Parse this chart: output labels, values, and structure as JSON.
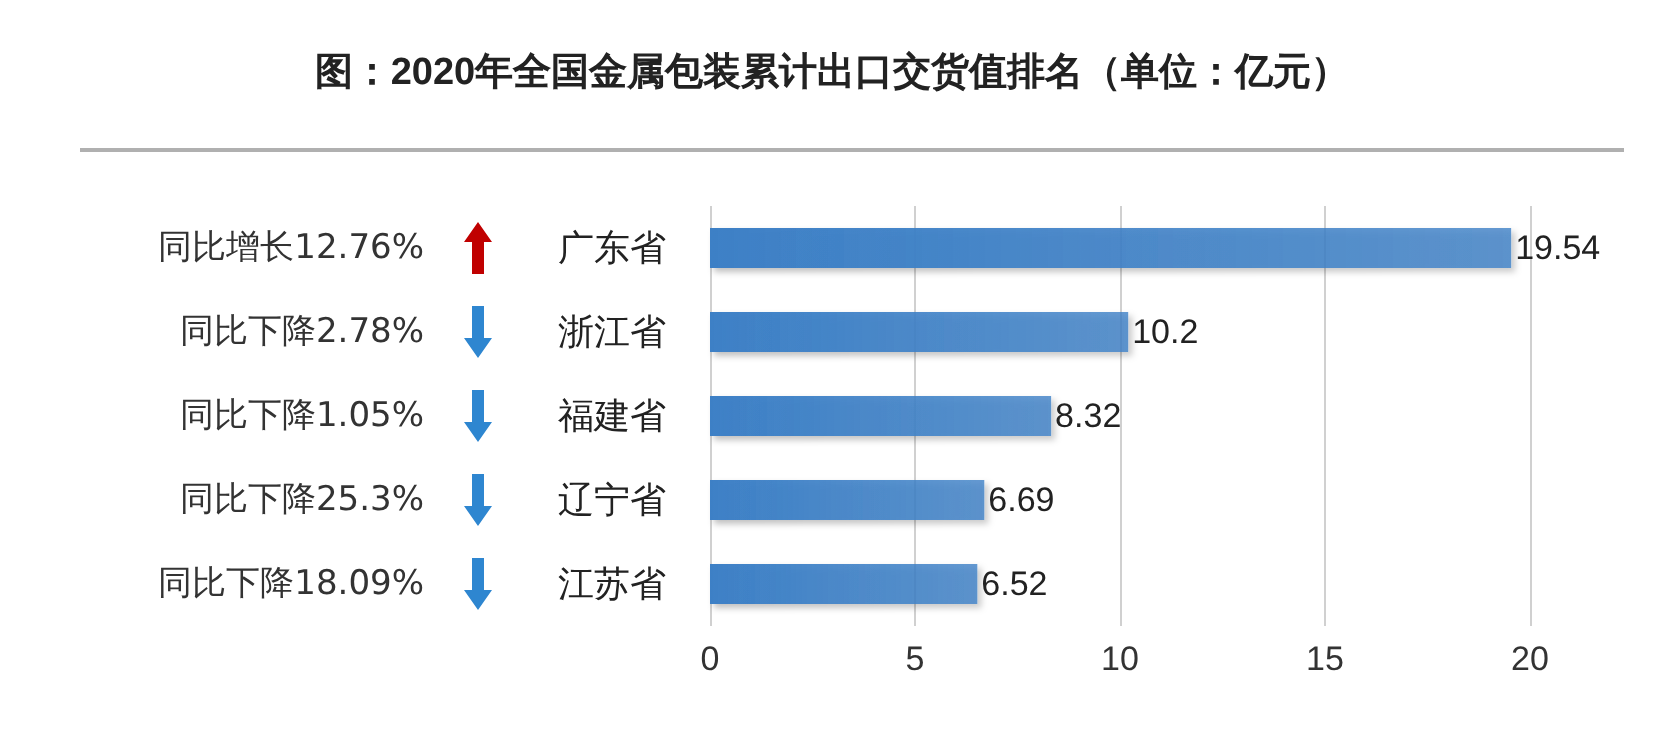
{
  "chart_data": {
    "type": "bar",
    "orientation": "horizontal",
    "title": "图：2020年全国金属包装累计出口交货值排名（单位：亿元）",
    "categories": [
      "广东省",
      "浙江省",
      "福建省",
      "辽宁省",
      "江苏省"
    ],
    "values": [
      19.54,
      10.2,
      8.32,
      6.69,
      6.52
    ],
    "color": "#3d80c6",
    "xlim": [
      0,
      20
    ],
    "xticks": [
      0,
      5,
      10,
      15,
      20
    ],
    "grid": "x",
    "data_labels": true,
    "annotations": [
      "同比增长12.76%",
      "同比下降2.78%",
      "同比下降1.05%",
      "同比下降25.3%",
      "同比下降18.09%"
    ]
  }
}
